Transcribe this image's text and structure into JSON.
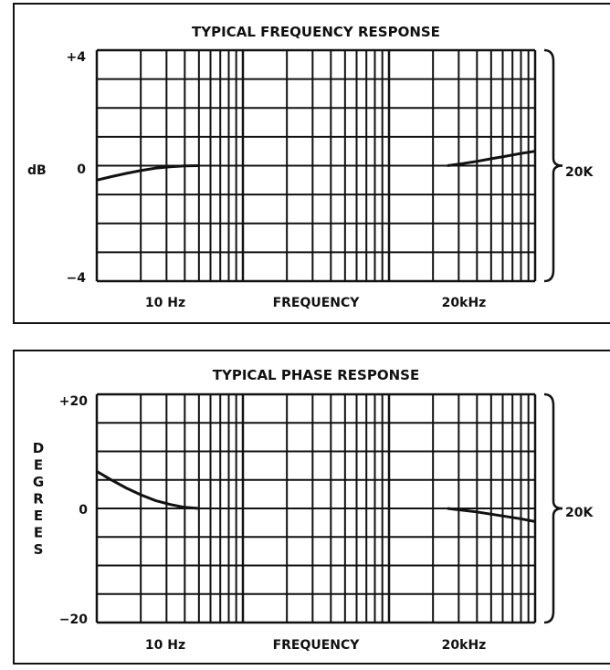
{
  "chart_data": [
    {
      "type": "line",
      "title": "TYPICAL FREQUENCY RESPONSE",
      "xlabel": "FREQUENCY",
      "ylabel": "dB",
      "x_tick_labels": [
        "10 Hz",
        "20kHz"
      ],
      "y_tick_labels": [
        "+4",
        "0",
        "−4"
      ],
      "ylim": [
        -4,
        4
      ],
      "bracket_label": "20K",
      "grid": true,
      "series": [
        {
          "segment": "low",
          "x": [
            0,
            0.1,
            0.2,
            0.3,
            0.4,
            0.5,
            0.6,
            0.7
          ],
          "y": [
            -0.5,
            -0.38,
            -0.27,
            -0.17,
            -0.09,
            -0.04,
            -0.01,
            0
          ]
        },
        {
          "segment": "high",
          "x": [
            2.4,
            2.5,
            2.6,
            2.7,
            2.8,
            2.9,
            3.0
          ],
          "y": [
            0,
            0.07,
            0.15,
            0.24,
            0.33,
            0.42,
            0.5
          ]
        }
      ]
    },
    {
      "type": "line",
      "title": "TYPICAL PHASE RESPONSE",
      "xlabel": "FREQUENCY",
      "ylabel": "DEGREES",
      "x_tick_labels": [
        "10 Hz",
        "20kHz"
      ],
      "y_tick_labels": [
        "+20",
        "0",
        "−20"
      ],
      "ylim": [
        -20,
        20
      ],
      "bracket_label": "20K",
      "grid": true,
      "series": [
        {
          "segment": "low",
          "x": [
            0,
            0.1,
            0.2,
            0.3,
            0.4,
            0.5,
            0.6,
            0.7
          ],
          "y": [
            6.5,
            5,
            3.6,
            2.4,
            1.4,
            0.7,
            0.2,
            0
          ]
        },
        {
          "segment": "high",
          "x": [
            2.4,
            2.5,
            2.6,
            2.7,
            2.8,
            2.9,
            3.0
          ],
          "y": [
            0,
            -0.3,
            -0.6,
            -1.0,
            -1.4,
            -1.8,
            -2.3
          ]
        }
      ]
    }
  ]
}
